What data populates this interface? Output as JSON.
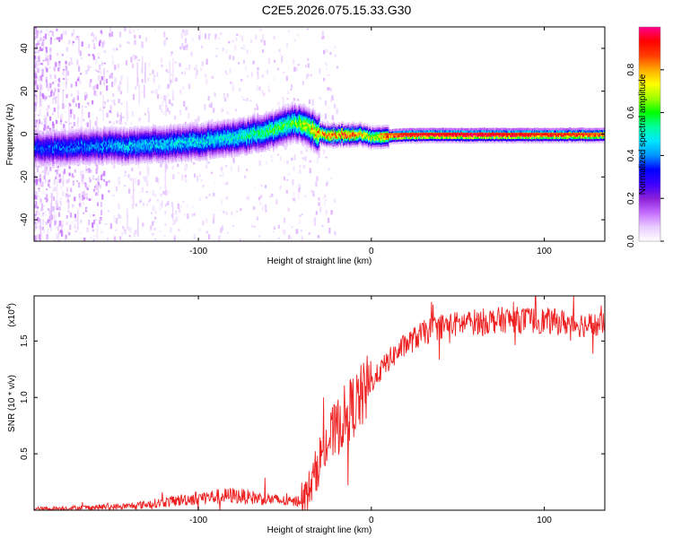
{
  "title": "C2E5.2026.075.15.33.G30",
  "colors": {
    "line": "#ee2222",
    "frame": "#000000",
    "colormap": [
      "#ffffff",
      "#e8ccff",
      "#c46cff",
      "#8a1fd8",
      "#3c00ff",
      "#0000ff",
      "#0096ff",
      "#00e6ff",
      "#00ff9e",
      "#00ff00",
      "#9eff00",
      "#ffff00",
      "#ffaa00",
      "#ff3c00",
      "#ff0000",
      "#ff0090"
    ]
  },
  "chart_data": [
    {
      "type": "heatmap",
      "xlabel": "Height of straight line (km)",
      "ylabel": "Frequency (Hz)",
      "xlim": [
        -195,
        135
      ],
      "ylim": [
        -50,
        50
      ],
      "xticks": [
        -100,
        0,
        100
      ],
      "xtick_labels": [
        "-100",
        "0",
        "100"
      ],
      "yticks": [
        -40,
        -20,
        0,
        20,
        40
      ],
      "ytick_labels": [
        "-40",
        "-20",
        "0",
        "20",
        "40"
      ],
      "colorbar": {
        "label": "Normalized spectral amplitude",
        "range": [
          0,
          1
        ],
        "ticks": [
          0.0,
          0.2,
          0.4,
          0.6,
          0.8
        ],
        "tick_labels": [
          "0.0",
          "0.2",
          "0.4",
          "0.6",
          "0.8"
        ]
      },
      "ridge": {
        "x": [
          -195,
          -180,
          -160,
          -140,
          -120,
          -100,
          -80,
          -65,
          -55,
          -45,
          -38,
          -32,
          -25,
          -15,
          -5,
          0,
          5,
          20,
          60,
          100,
          135
        ],
        "y": [
          -6,
          -6,
          -5,
          -5,
          -4,
          -3,
          -1,
          1,
          3,
          6,
          5,
          1,
          0,
          0,
          0,
          -1,
          -1,
          0,
          0,
          0,
          0
        ],
        "amp": [
          0.35,
          0.38,
          0.4,
          0.45,
          0.45,
          0.48,
          0.5,
          0.55,
          0.6,
          0.6,
          0.7,
          0.8,
          0.85,
          0.9,
          0.75,
          0.7,
          0.8,
          0.92,
          0.95,
          0.9,
          0.85
        ]
      }
    },
    {
      "type": "line",
      "xlabel": "Height of straight line (km)",
      "ylabel": "SNR (10 * v/v)",
      "y_scale_label": "(x10",
      "y_scale_exponent": "4",
      "xlim": [
        -195,
        135
      ],
      "ylim": [
        0,
        19000
      ],
      "xticks": [
        -100,
        0,
        100
      ],
      "xtick_labels": [
        "-100",
        "0",
        "100"
      ],
      "yticks": [
        5000,
        10000,
        15000
      ],
      "ytick_labels": [
        "0.5",
        "1.0",
        "1.5"
      ],
      "trend": {
        "x": [
          -195,
          -170,
          -140,
          -120,
          -100,
          -80,
          -60,
          -45,
          -38,
          -34,
          -30,
          -25,
          -20,
          -15,
          -10,
          -5,
          0,
          5,
          10,
          20,
          30,
          40,
          60,
          80,
          100,
          120,
          135
        ],
        "y": [
          100,
          200,
          350,
          700,
          1100,
          1300,
          1000,
          700,
          1200,
          2500,
          4500,
          6200,
          7200,
          8500,
          9300,
          10100,
          11300,
          12300,
          13300,
          14700,
          15700,
          16300,
          16700,
          16900,
          16800,
          16500,
          16300
        ]
      },
      "peak": {
        "x": 95,
        "y": 19000
      }
    }
  ]
}
